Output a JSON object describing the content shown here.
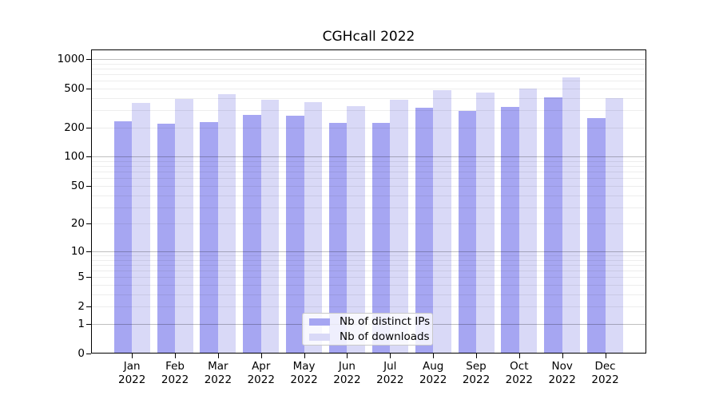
{
  "chart_data": {
    "type": "bar",
    "title": "CGHcall 2022",
    "categories": [
      "Jan 2022",
      "Feb 2022",
      "Mar 2022",
      "Apr 2022",
      "May 2022",
      "Jun 2022",
      "Jul 2022",
      "Aug 2022",
      "Sep 2022",
      "Oct 2022",
      "Nov 2022",
      "Dec 2022"
    ],
    "series": [
      {
        "name": "Nb of distinct IPs",
        "color": "#a6a6f2",
        "values": [
          231,
          217,
          228,
          271,
          262,
          224,
          224,
          317,
          294,
          327,
          408,
          250
        ]
      },
      {
        "name": "Nb of downloads",
        "color": "#d9d9f7",
        "values": [
          353,
          388,
          440,
          382,
          364,
          333,
          383,
          480,
          457,
          498,
          650,
          400
        ]
      }
    ],
    "xlabel": "",
    "ylabel": "",
    "y_scale": "log1p",
    "ylim": [
      0,
      1250
    ],
    "y_ticks": [
      0,
      1,
      2,
      5,
      10,
      20,
      50,
      100,
      200,
      500,
      1000
    ],
    "grid_major": [
      1,
      10,
      100,
      1000
    ],
    "grid_minor": [
      2,
      3,
      4,
      5,
      6,
      7,
      8,
      9,
      20,
      30,
      40,
      50,
      60,
      70,
      80,
      90,
      200,
      300,
      400,
      500,
      600,
      700,
      800,
      900
    ],
    "grid": "on",
    "legend_loc": "lower center (inside plot)"
  }
}
